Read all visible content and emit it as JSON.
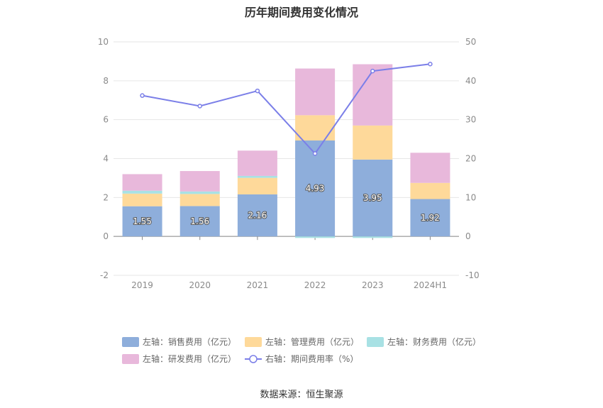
{
  "chart_data": {
    "type": "bar",
    "title": "历年期间费用变化情况",
    "categories": [
      "2019",
      "2020",
      "2021",
      "2022",
      "2023",
      "2024H1"
    ],
    "stacked": true,
    "y_left": {
      "ylim": [
        -2,
        10
      ],
      "ticks": [
        -2,
        0,
        2,
        4,
        6,
        8,
        10
      ]
    },
    "y_right": {
      "ylim": [
        -10,
        50
      ],
      "ticks": [
        -10,
        0,
        10,
        20,
        30,
        40,
        50
      ]
    },
    "grid": true,
    "legend_position": "bottom",
    "series": [
      {
        "name": "左轴：销售费用（亿元）",
        "type": "bar",
        "axis": "left",
        "color": "#8eaedb",
        "values": [
          1.55,
          1.56,
          2.16,
          4.93,
          3.95,
          1.92
        ],
        "show_labels": true
      },
      {
        "name": "左轴：管理费用（亿元）",
        "type": "bar",
        "axis": "left",
        "color": "#fed99a",
        "values": [
          0.65,
          0.62,
          0.85,
          1.3,
          1.75,
          0.83
        ]
      },
      {
        "name": "左轴：财务费用（亿元）",
        "type": "bar",
        "axis": "left",
        "color": "#a8e1e4",
        "values": [
          0.15,
          0.13,
          0.1,
          -0.08,
          -0.08,
          0.0
        ]
      },
      {
        "name": "左轴：研发费用（亿元）",
        "type": "bar",
        "axis": "left",
        "color": "#e8b8db",
        "values": [
          0.85,
          1.05,
          1.3,
          2.4,
          3.15,
          1.55
        ]
      },
      {
        "name": "右轴：期间费用率（%）",
        "type": "line",
        "axis": "right",
        "color": "#7b7fe8",
        "values": [
          36.2,
          33.5,
          37.4,
          21.3,
          42.5,
          44.3
        ]
      }
    ],
    "source": "数据来源：恒生聚源"
  }
}
